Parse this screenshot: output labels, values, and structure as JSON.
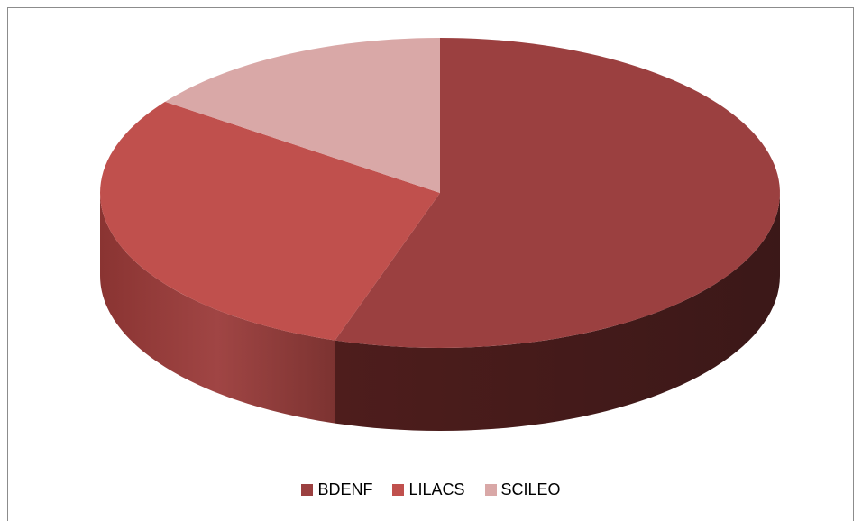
{
  "chart_data": {
    "type": "pie",
    "style": "3d",
    "title": "",
    "categories": [
      "BDENF",
      "LILACS",
      "SCILEO"
    ],
    "values": [
      55,
      30,
      15
    ],
    "colors": [
      "#9b4040",
      "#c0504d",
      "#d9a8a7"
    ],
    "legend_position": "bottom"
  }
}
